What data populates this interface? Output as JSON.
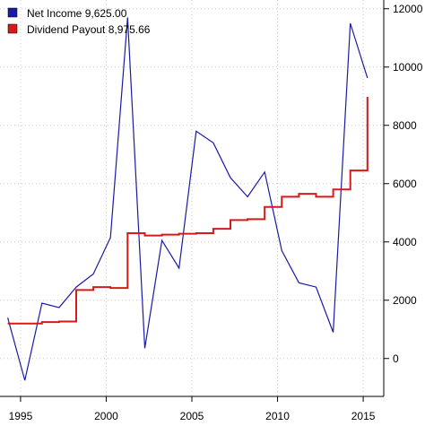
{
  "chart_data": {
    "type": "line",
    "title": "",
    "xlabel": "",
    "ylabel": "",
    "xlim": [
      1993.8,
      2016.2
    ],
    "ylim": [
      -1300,
      12300
    ],
    "grid": true,
    "legend_position": "top-left",
    "x_ticks": [
      {
        "value": 1995,
        "label": "1995"
      },
      {
        "value": 2000,
        "label": "2000"
      },
      {
        "value": 2005,
        "label": "2005"
      },
      {
        "value": 2010,
        "label": "2010"
      },
      {
        "value": 2015,
        "label": "2015"
      }
    ],
    "y_ticks": [
      {
        "value": 0,
        "label": "0"
      },
      {
        "value": 2000,
        "label": "2000"
      },
      {
        "value": 4000,
        "label": "4000"
      },
      {
        "value": 6000,
        "label": "6000"
      },
      {
        "value": 8000,
        "label": "8000"
      },
      {
        "value": 10000,
        "label": "10000"
      },
      {
        "value": 12000,
        "label": "12000"
      }
    ],
    "series": [
      {
        "name": "Net Income",
        "legend_label": "Net Income 9,625.00",
        "color": "#1a1aa6",
        "step": false,
        "points": [
          [
            1994.25,
            1400
          ],
          [
            1995.25,
            -750
          ],
          [
            1996.25,
            1900
          ],
          [
            1997.25,
            1750
          ],
          [
            1998.25,
            2450
          ],
          [
            1999.25,
            2900
          ],
          [
            2000.25,
            4150
          ],
          [
            2001.25,
            11700
          ],
          [
            2002.25,
            350
          ],
          [
            2003.25,
            4050
          ],
          [
            2004.25,
            3100
          ],
          [
            2005.25,
            7800
          ],
          [
            2006.25,
            7400
          ],
          [
            2007.25,
            6200
          ],
          [
            2008.25,
            5550
          ],
          [
            2009.25,
            6400
          ],
          [
            2010.25,
            3700
          ],
          [
            2011.25,
            2600
          ],
          [
            2012.25,
            2450
          ],
          [
            2013.25,
            900
          ],
          [
            2014.25,
            11500
          ],
          [
            2015.25,
            9625
          ]
        ]
      },
      {
        "name": "Dividend Payout",
        "legend_label": "Dividend Payout 8,975.66",
        "color": "#d41a1a",
        "step": true,
        "points": [
          [
            1994.25,
            1200
          ],
          [
            1995.25,
            1200
          ],
          [
            1996.25,
            1250
          ],
          [
            1997.25,
            1270
          ],
          [
            1998.25,
            2350
          ],
          [
            1999.25,
            2450
          ],
          [
            2000.25,
            2420
          ],
          [
            2001.25,
            4300
          ],
          [
            2002.25,
            4220
          ],
          [
            2003.25,
            4250
          ],
          [
            2004.25,
            4280
          ],
          [
            2005.25,
            4300
          ],
          [
            2006.25,
            4450
          ],
          [
            2007.25,
            4750
          ],
          [
            2008.25,
            4780
          ],
          [
            2009.25,
            5200
          ],
          [
            2010.25,
            5550
          ],
          [
            2011.25,
            5650
          ],
          [
            2012.25,
            5550
          ],
          [
            2013.25,
            5800
          ],
          [
            2014.25,
            6450
          ],
          [
            2015.25,
            8975.66
          ]
        ]
      }
    ]
  }
}
